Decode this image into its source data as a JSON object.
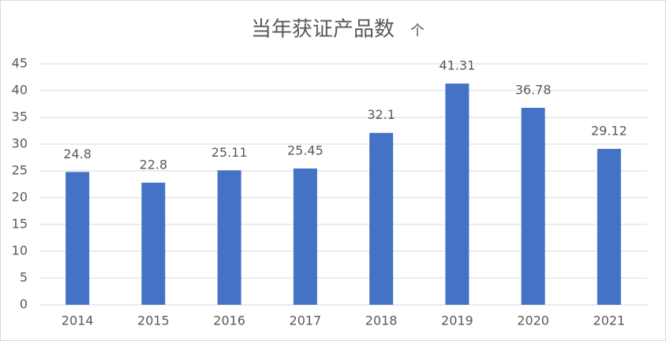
{
  "chart_data": {
    "type": "bar",
    "title": "当年获证产品数",
    "unit": "个",
    "categories": [
      "2014",
      "2015",
      "2016",
      "2017",
      "2018",
      "2019",
      "2020",
      "2021"
    ],
    "values": [
      24.8,
      22.8,
      25.11,
      25.45,
      32.1,
      41.31,
      36.78,
      29.12
    ],
    "color": "#4472c4",
    "ylim": [
      0,
      45
    ],
    "yticks": [
      0,
      5,
      10,
      15,
      20,
      25,
      30,
      35,
      40,
      45
    ],
    "grid": true
  }
}
